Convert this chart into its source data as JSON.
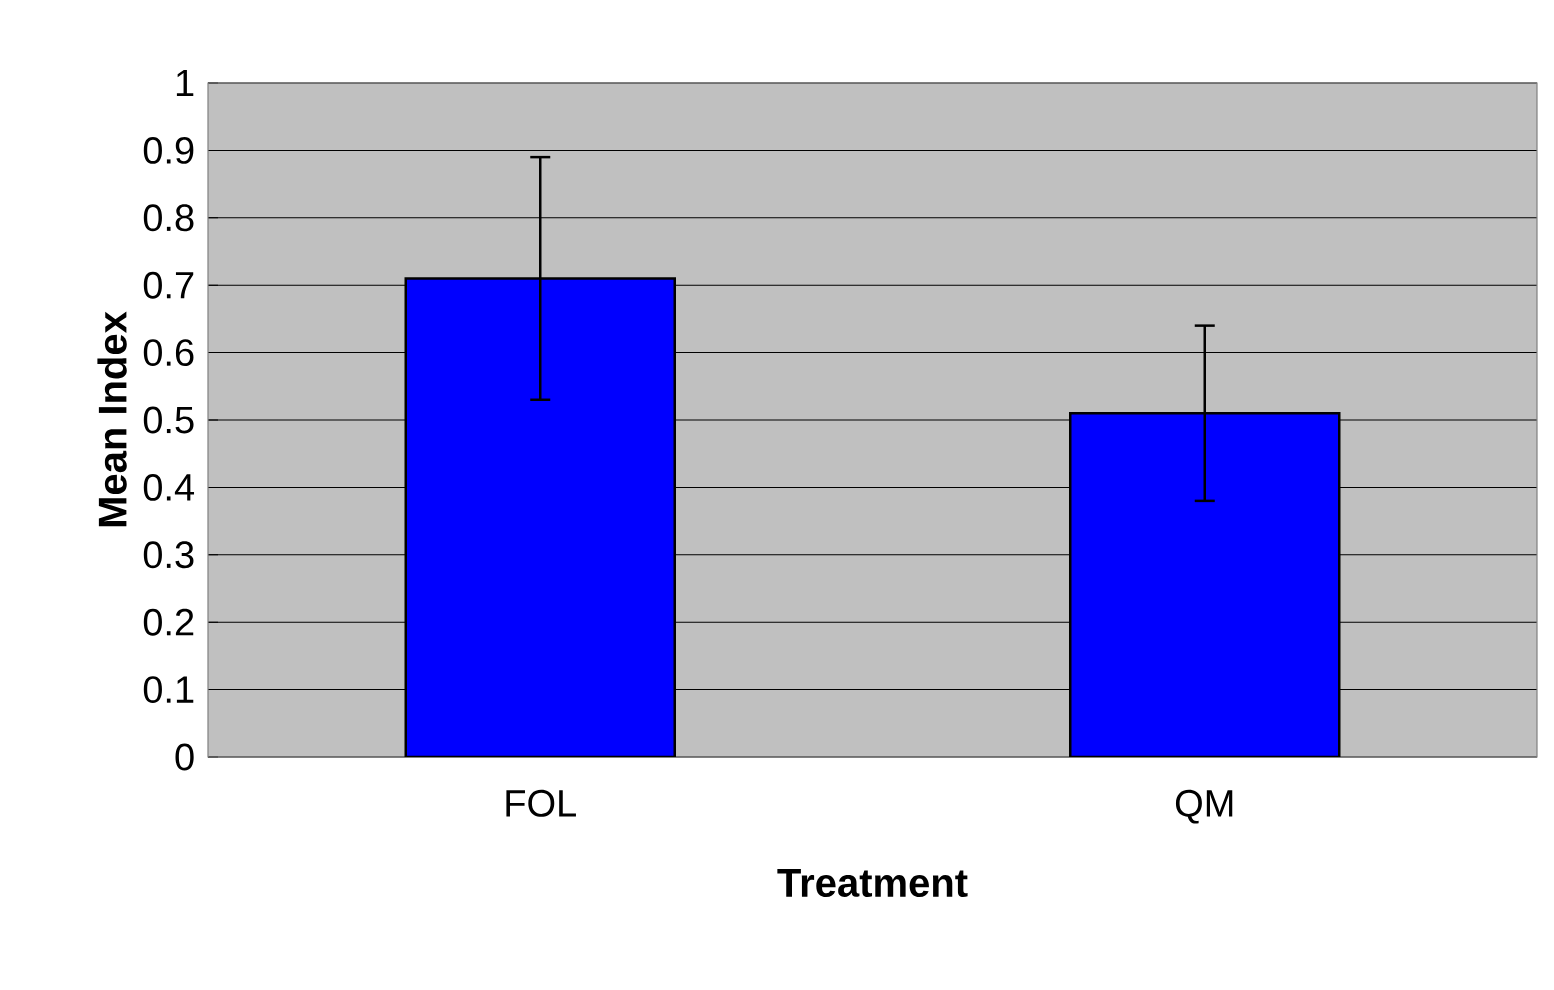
{
  "chart_data": {
    "type": "bar",
    "xlabel": "Treatment",
    "ylabel": "Mean Index",
    "categories": [
      "FOL",
      "QM"
    ],
    "values": [
      0.71,
      0.51
    ],
    "errors": [
      0.18,
      0.13
    ],
    "color": "#0000ff",
    "ylim": [
      0,
      1
    ],
    "yticks": [
      0,
      0.1,
      0.2,
      0.3,
      0.4,
      0.5,
      0.6,
      0.7,
      0.8,
      0.9,
      1
    ],
    "grid": "y"
  }
}
